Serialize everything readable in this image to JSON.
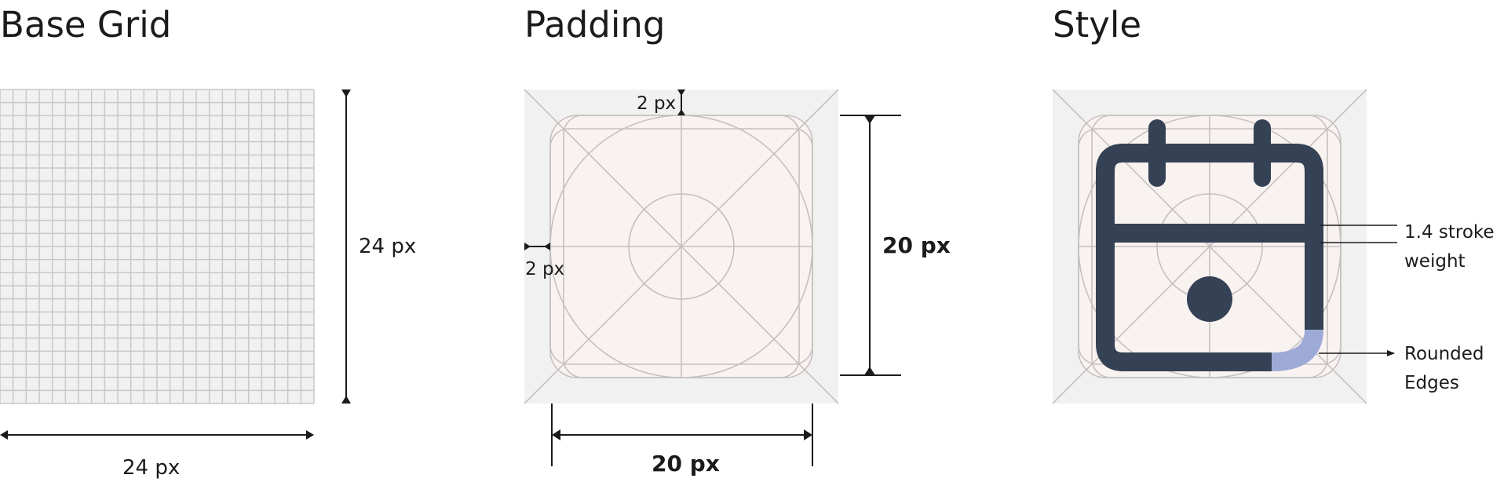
{
  "sections": {
    "base_grid": {
      "title": "Base Grid",
      "width_label": "24 px",
      "height_label": "24 px",
      "grid_units": 24
    },
    "padding": {
      "title": "Padding",
      "top_label": "2 px",
      "left_label": "2 px",
      "height_label": "20 px",
      "width_label": "20 px"
    },
    "style": {
      "title": "Style",
      "stroke_label_line1": "1.4 stroke",
      "stroke_label_line2": "weight",
      "rounded_label_line1": "Rounded",
      "rounded_label_line2": "Edges"
    }
  },
  "colors": {
    "grid_line": "#c8c8c8",
    "panel_bg": "#f1f1f1",
    "safe_area": "#f8f2f1",
    "keyline": "#c5c0bf",
    "icon": "#354154",
    "highlight": "#9eaad6",
    "text": "#1b1b1b"
  },
  "icon": "calendar-icon"
}
